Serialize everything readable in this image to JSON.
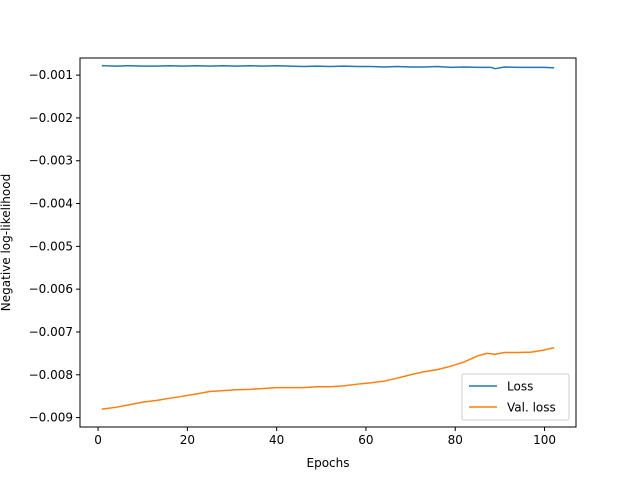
{
  "chart_data": {
    "type": "line",
    "title": "",
    "xlabel": "Epochs",
    "ylabel": "Negative log-likelihood",
    "xlim": [
      -4.05,
      107.05
    ],
    "ylim": [
      -0.00922,
      -0.0006
    ],
    "x_ticks": [
      0,
      20,
      40,
      60,
      80,
      100
    ],
    "x_tick_labels": [
      "0",
      "20",
      "40",
      "60",
      "80",
      "100"
    ],
    "y_ticks": [
      -0.009,
      -0.008,
      -0.007,
      -0.006,
      -0.005,
      -0.004,
      -0.003,
      -0.002,
      -0.001
    ],
    "y_tick_labels": [
      "−0.009",
      "−0.008",
      "−0.007",
      "−0.006",
      "−0.005",
      "−0.004",
      "−0.003",
      "−0.002",
      "−0.001"
    ],
    "grid": false,
    "legend_position": "lower-right",
    "series": [
      {
        "name": "Loss",
        "color": "#1f77b4",
        "x": [
          1,
          4,
          7,
          10,
          13,
          16,
          19,
          22,
          25,
          28,
          31,
          34,
          37,
          40,
          43,
          46,
          49,
          52,
          55,
          58,
          61,
          64,
          67,
          70,
          73,
          76,
          79,
          82,
          85,
          88,
          89,
          91,
          94,
          97,
          100,
          102
        ],
        "y": [
          -0.00078,
          -0.00079,
          -0.00078,
          -0.00079,
          -0.00079,
          -0.00078,
          -0.00079,
          -0.00078,
          -0.00079,
          -0.00078,
          -0.00079,
          -0.00078,
          -0.00079,
          -0.00078,
          -0.00079,
          -0.0008,
          -0.00079,
          -0.0008,
          -0.00079,
          -0.0008,
          -0.0008,
          -0.00081,
          -0.0008,
          -0.00081,
          -0.00081,
          -0.0008,
          -0.00082,
          -0.00081,
          -0.00082,
          -0.00082,
          -0.00085,
          -0.00081,
          -0.00082,
          -0.00082,
          -0.00082,
          -0.00083
        ]
      },
      {
        "name": "Val. loss",
        "color": "#ff7f0e",
        "x": [
          1,
          4,
          7,
          10,
          13,
          16,
          19,
          22,
          25,
          28,
          31,
          34,
          37,
          40,
          43,
          46,
          49,
          52,
          55,
          58,
          61,
          64,
          67,
          70,
          73,
          76,
          79,
          82,
          85,
          87,
          89,
          91,
          94,
          97,
          100,
          102
        ],
        "y": [
          -0.0088,
          -0.00876,
          -0.0087,
          -0.00864,
          -0.0086,
          -0.00855,
          -0.0085,
          -0.00845,
          -0.00839,
          -0.00837,
          -0.00835,
          -0.00834,
          -0.00832,
          -0.0083,
          -0.0083,
          -0.0083,
          -0.00828,
          -0.00828,
          -0.00826,
          -0.00822,
          -0.00819,
          -0.00815,
          -0.00808,
          -0.008,
          -0.00793,
          -0.00788,
          -0.0078,
          -0.0077,
          -0.00756,
          -0.0075,
          -0.00752,
          -0.00748,
          -0.00748,
          -0.00747,
          -0.00742,
          -0.00737
        ]
      }
    ]
  }
}
